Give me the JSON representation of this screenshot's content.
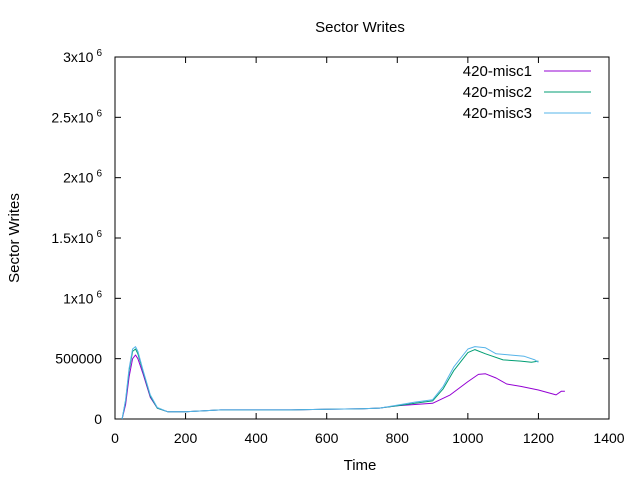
{
  "chart_data": {
    "type": "line",
    "title": "Sector Writes",
    "xlabel": "Time",
    "ylabel": "Sector Writes",
    "xlim": [
      0,
      1400
    ],
    "ylim": [
      0,
      3000000
    ],
    "grid": false,
    "legend_position": "top-right",
    "x_ticks": [
      {
        "value": 0,
        "label": "0"
      },
      {
        "value": 200,
        "label": "200"
      },
      {
        "value": 400,
        "label": "400"
      },
      {
        "value": 600,
        "label": "600"
      },
      {
        "value": 800,
        "label": "800"
      },
      {
        "value": 1000,
        "label": "1000"
      },
      {
        "value": 1200,
        "label": "1200"
      },
      {
        "value": 1400,
        "label": "1400"
      }
    ],
    "y_ticks": [
      {
        "value": 0,
        "label": "0",
        "sup": ""
      },
      {
        "value": 500000,
        "label": "500000",
        "sup": ""
      },
      {
        "value": 1000000,
        "label": "1x10",
        "sup": "6"
      },
      {
        "value": 1500000,
        "label": "1.5x10",
        "sup": "6"
      },
      {
        "value": 2000000,
        "label": "2x10",
        "sup": "6"
      },
      {
        "value": 2500000,
        "label": "2.5x10",
        "sup": "6"
      },
      {
        "value": 3000000,
        "label": "3x10",
        "sup": "6"
      }
    ],
    "series": [
      {
        "name": "420-misc1",
        "color": "#9400d3",
        "points": [
          [
            20,
            0
          ],
          [
            30,
            120000
          ],
          [
            40,
            350000
          ],
          [
            50,
            500000
          ],
          [
            58,
            530000
          ],
          [
            65,
            500000
          ],
          [
            80,
            370000
          ],
          [
            100,
            180000
          ],
          [
            120,
            90000
          ],
          [
            150,
            60000
          ],
          [
            200,
            60000
          ],
          [
            300,
            75000
          ],
          [
            400,
            75000
          ],
          [
            500,
            75000
          ],
          [
            600,
            80000
          ],
          [
            700,
            85000
          ],
          [
            750,
            90000
          ],
          [
            800,
            110000
          ],
          [
            850,
            120000
          ],
          [
            900,
            130000
          ],
          [
            950,
            200000
          ],
          [
            1000,
            310000
          ],
          [
            1030,
            370000
          ],
          [
            1050,
            375000
          ],
          [
            1080,
            340000
          ],
          [
            1110,
            290000
          ],
          [
            1150,
            270000
          ],
          [
            1200,
            240000
          ],
          [
            1250,
            200000
          ],
          [
            1265,
            230000
          ],
          [
            1275,
            230000
          ]
        ]
      },
      {
        "name": "420-misc2",
        "color": "#009e73",
        "points": [
          [
            20,
            0
          ],
          [
            30,
            150000
          ],
          [
            40,
            400000
          ],
          [
            50,
            560000
          ],
          [
            58,
            580000
          ],
          [
            65,
            540000
          ],
          [
            80,
            390000
          ],
          [
            100,
            190000
          ],
          [
            120,
            90000
          ],
          [
            150,
            60000
          ],
          [
            200,
            60000
          ],
          [
            300,
            75000
          ],
          [
            400,
            75000
          ],
          [
            500,
            75000
          ],
          [
            600,
            80000
          ],
          [
            700,
            85000
          ],
          [
            750,
            90000
          ],
          [
            800,
            110000
          ],
          [
            850,
            130000
          ],
          [
            900,
            150000
          ],
          [
            930,
            250000
          ],
          [
            960,
            400000
          ],
          [
            1000,
            550000
          ],
          [
            1020,
            575000
          ],
          [
            1050,
            540000
          ],
          [
            1100,
            490000
          ],
          [
            1150,
            480000
          ],
          [
            1180,
            470000
          ],
          [
            1200,
            480000
          ]
        ]
      },
      {
        "name": "420-misc3",
        "color": "#56b4e9",
        "points": [
          [
            20,
            0
          ],
          [
            30,
            160000
          ],
          [
            40,
            420000
          ],
          [
            50,
            580000
          ],
          [
            58,
            600000
          ],
          [
            65,
            560000
          ],
          [
            80,
            400000
          ],
          [
            100,
            200000
          ],
          [
            120,
            95000
          ],
          [
            150,
            60000
          ],
          [
            200,
            60000
          ],
          [
            300,
            75000
          ],
          [
            400,
            75000
          ],
          [
            500,
            75000
          ],
          [
            600,
            80000
          ],
          [
            700,
            85000
          ],
          [
            750,
            90000
          ],
          [
            800,
            115000
          ],
          [
            850,
            140000
          ],
          [
            900,
            160000
          ],
          [
            930,
            270000
          ],
          [
            960,
            430000
          ],
          [
            1000,
            580000
          ],
          [
            1020,
            600000
          ],
          [
            1050,
            590000
          ],
          [
            1080,
            540000
          ],
          [
            1120,
            530000
          ],
          [
            1160,
            520000
          ],
          [
            1190,
            490000
          ],
          [
            1200,
            470000
          ]
        ]
      }
    ]
  }
}
